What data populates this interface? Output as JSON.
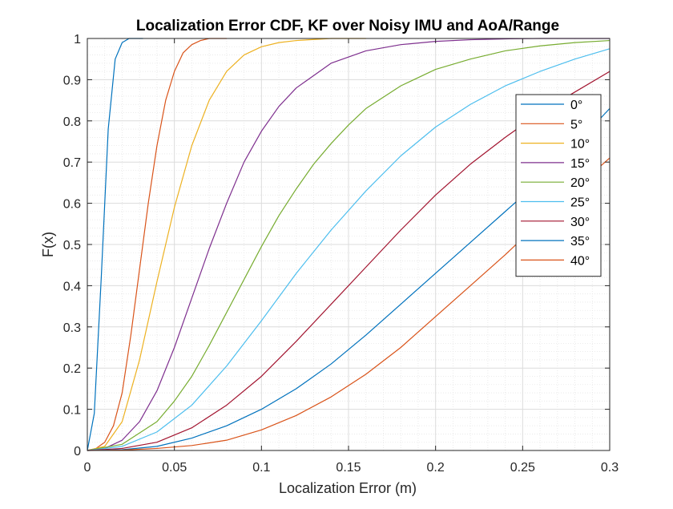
{
  "chart_data": {
    "type": "line",
    "title": "Localization Error CDF, KF over Noisy IMU and AoA/Range",
    "xlabel": "Localization Error (m)",
    "ylabel": "F(x)",
    "xlim": [
      0,
      0.3
    ],
    "ylim": [
      0,
      1
    ],
    "x_ticks": [
      "0",
      "0.05",
      "0.1",
      "0.15",
      "0.2",
      "0.25",
      "0.3"
    ],
    "y_ticks": [
      "0",
      "0.1",
      "0.2",
      "0.3",
      "0.4",
      "0.5",
      "0.6",
      "0.7",
      "0.8",
      "0.9",
      "1"
    ],
    "grid": true,
    "minor_grid": true,
    "legend_position": "top-right",
    "series": [
      {
        "name": "0°",
        "color": "#0072BD",
        "x": [
          0,
          0.004,
          0.008,
          0.012,
          0.016,
          0.02,
          0.024,
          0.028,
          0.032
        ],
        "y": [
          0,
          0.09,
          0.42,
          0.78,
          0.95,
          0.99,
          1.0,
          1.0,
          1.0
        ]
      },
      {
        "name": "5°",
        "color": "#D95319",
        "x": [
          0,
          0.005,
          0.01,
          0.015,
          0.02,
          0.025,
          0.03,
          0.035,
          0.04,
          0.045,
          0.05,
          0.055,
          0.06,
          0.065,
          0.07,
          0.08
        ],
        "y": [
          0,
          0.005,
          0.02,
          0.06,
          0.14,
          0.28,
          0.44,
          0.6,
          0.74,
          0.85,
          0.92,
          0.965,
          0.985,
          0.995,
          1.0,
          1.0
        ]
      },
      {
        "name": "10°",
        "color": "#EDB120",
        "x": [
          0,
          0.01,
          0.02,
          0.03,
          0.04,
          0.05,
          0.06,
          0.07,
          0.08,
          0.09,
          0.1,
          0.11,
          0.12,
          0.14,
          0.16
        ],
        "y": [
          0,
          0.01,
          0.07,
          0.22,
          0.41,
          0.59,
          0.74,
          0.85,
          0.92,
          0.96,
          0.98,
          0.99,
          0.995,
          1.0,
          1.0
        ]
      },
      {
        "name": "15°",
        "color": "#7E2F8E",
        "x": [
          0,
          0.01,
          0.02,
          0.03,
          0.04,
          0.05,
          0.06,
          0.07,
          0.08,
          0.09,
          0.1,
          0.11,
          0.12,
          0.14,
          0.16,
          0.18,
          0.2,
          0.22,
          0.24,
          0.26,
          0.28,
          0.3
        ],
        "y": [
          0,
          0.005,
          0.025,
          0.07,
          0.145,
          0.25,
          0.37,
          0.49,
          0.6,
          0.7,
          0.775,
          0.835,
          0.88,
          0.94,
          0.97,
          0.985,
          0.993,
          0.997,
          0.999,
          1.0,
          1.0,
          1.0
        ]
      },
      {
        "name": "20°",
        "color": "#77AC30",
        "x": [
          0,
          0.02,
          0.04,
          0.05,
          0.06,
          0.07,
          0.08,
          0.09,
          0.1,
          0.11,
          0.12,
          0.13,
          0.14,
          0.15,
          0.16,
          0.18,
          0.2,
          0.22,
          0.24,
          0.26,
          0.28,
          0.3
        ],
        "y": [
          0,
          0.015,
          0.07,
          0.12,
          0.18,
          0.255,
          0.335,
          0.415,
          0.495,
          0.57,
          0.635,
          0.695,
          0.745,
          0.79,
          0.83,
          0.885,
          0.925,
          0.95,
          0.97,
          0.982,
          0.99,
          0.995
        ]
      },
      {
        "name": "25°",
        "color": "#4DBEEE",
        "x": [
          0,
          0.02,
          0.04,
          0.06,
          0.08,
          0.1,
          0.12,
          0.14,
          0.16,
          0.18,
          0.2,
          0.22,
          0.24,
          0.26,
          0.28,
          0.3
        ],
        "y": [
          0,
          0.01,
          0.045,
          0.11,
          0.205,
          0.315,
          0.43,
          0.535,
          0.63,
          0.715,
          0.785,
          0.84,
          0.885,
          0.92,
          0.95,
          0.975
        ]
      },
      {
        "name": "30°",
        "color": "#A2142F",
        "x": [
          0,
          0.02,
          0.04,
          0.06,
          0.08,
          0.1,
          0.12,
          0.14,
          0.16,
          0.18,
          0.2,
          0.22,
          0.24,
          0.26,
          0.28,
          0.3
        ],
        "y": [
          0,
          0.005,
          0.02,
          0.055,
          0.11,
          0.18,
          0.265,
          0.355,
          0.445,
          0.535,
          0.62,
          0.695,
          0.76,
          0.82,
          0.87,
          0.92
        ]
      },
      {
        "name": "35°",
        "color": "#0072BD",
        "x": [
          0,
          0.02,
          0.04,
          0.06,
          0.08,
          0.1,
          0.12,
          0.14,
          0.16,
          0.18,
          0.2,
          0.22,
          0.24,
          0.26,
          0.28,
          0.3
        ],
        "y": [
          0,
          0.002,
          0.01,
          0.03,
          0.06,
          0.1,
          0.15,
          0.21,
          0.28,
          0.355,
          0.43,
          0.505,
          0.58,
          0.655,
          0.74,
          0.83
        ]
      },
      {
        "name": "40°",
        "color": "#D95319",
        "x": [
          0,
          0.02,
          0.04,
          0.06,
          0.08,
          0.1,
          0.12,
          0.14,
          0.16,
          0.18,
          0.2,
          0.22,
          0.24,
          0.26,
          0.28,
          0.3
        ],
        "y": [
          0,
          0.001,
          0.005,
          0.012,
          0.025,
          0.05,
          0.085,
          0.13,
          0.185,
          0.25,
          0.325,
          0.4,
          0.475,
          0.555,
          0.635,
          0.71
        ]
      }
    ]
  }
}
